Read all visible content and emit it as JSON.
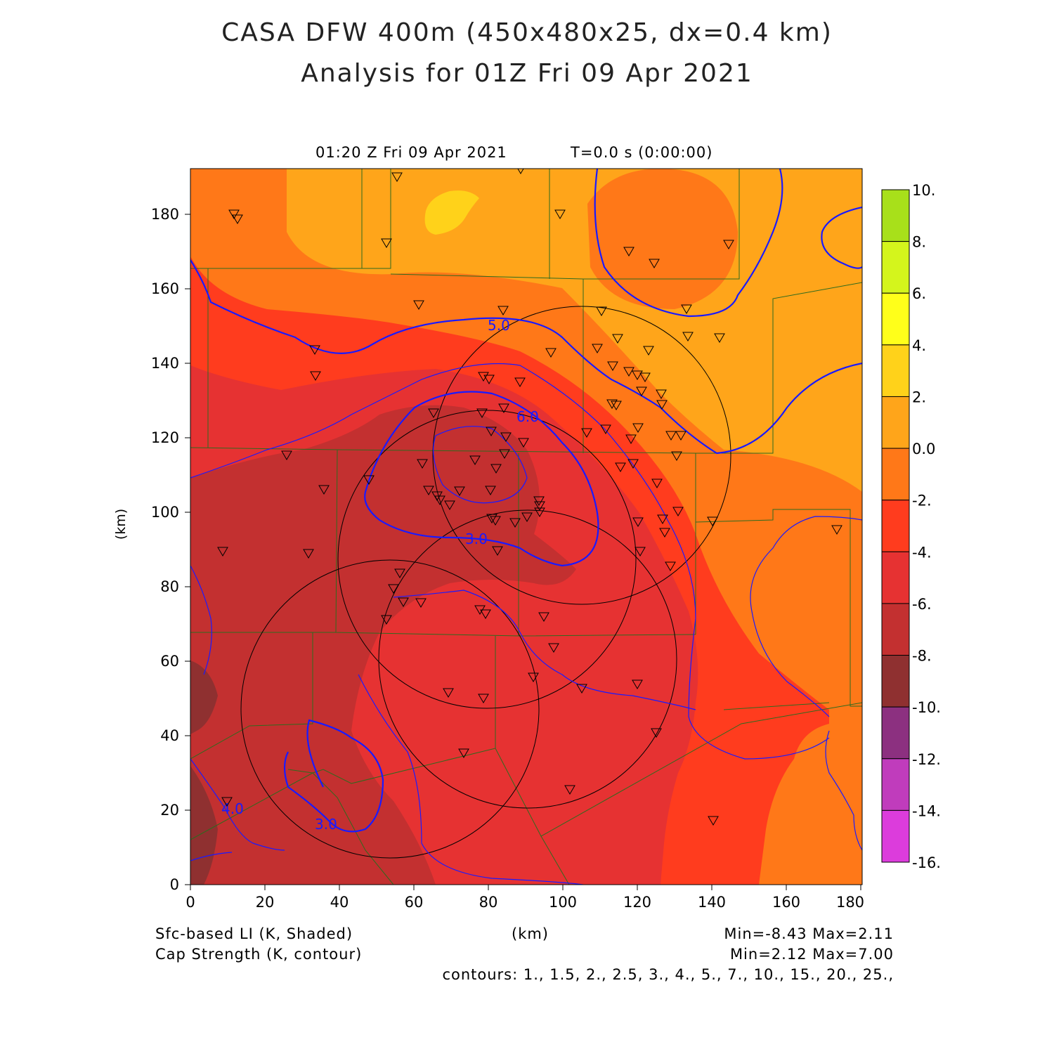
{
  "title": {
    "line1": "CASA DFW 400m (450x480x25, dx=0.4 km)",
    "line2": "Analysis for 01Z Fri 09 Apr 2021"
  },
  "valid_time": "01:20 Z Fri 09 Apr 2021",
  "model_time": "T=0.0 s (0:00:00)",
  "axes": {
    "x_ticks": [
      "0",
      "20",
      "40",
      "60",
      "80",
      "100",
      "120",
      "140",
      "160",
      "180"
    ],
    "y_ticks": [
      "0",
      "20",
      "40",
      "60",
      "80",
      "100",
      "120",
      "140",
      "160",
      "180"
    ],
    "xlabel": "(km)",
    "ylabel": "(km)",
    "xlim": [
      0,
      180
    ],
    "ylim": [
      0,
      192
    ]
  },
  "colorbar": {
    "labels": [
      "10.",
      "8.",
      "6.",
      "4.",
      "2.",
      "0.0",
      "-2.",
      "-4.",
      "-6.",
      "-8.",
      "-10.",
      "-12.",
      "-14.",
      "-16."
    ],
    "colors": [
      "#a8e01a",
      "#d4f51c",
      "#ffff1a",
      "#ffd21a",
      "#ffa51a",
      "#ff7818",
      "#ff3c1e",
      "#e63232",
      "#c33030",
      "#8f3030",
      "#8c3080",
      "#c03cbc",
      "#dc3cdc"
    ]
  },
  "fields": {
    "shaded": "Sfc-based LI (K, Shaded)",
    "shaded_stats": "Min=-8.43 Max=2.11",
    "contour": "Cap Strength (K, contour)",
    "contour_stats": "Min=2.12 Max=7.00",
    "contour_levels": "contours: 1., 1.5, 2., 2.5, 3., 4., 5., 7., 10., 15., 20., 25.,"
  },
  "contour_labels": [
    "5.0",
    "3.0",
    "6.0",
    "4.0",
    "3.0"
  ],
  "radar_rings_center_km": [
    [
      52,
      49
    ],
    [
      105,
      115
    ],
    [
      80,
      89
    ],
    [
      91,
      62
    ]
  ],
  "station_count": 96,
  "chart_data": {
    "type": "heatmap",
    "title": "CASA DFW 400m (450x480x25, dx=0.4 km)",
    "subtitle": "Analysis for 01Z Fri 09 Apr 2021",
    "xlabel": "(km)",
    "ylabel": "(km)",
    "xlim": [
      0,
      180
    ],
    "ylim": [
      0,
      192
    ],
    "colorbar_range": [
      -16,
      10
    ],
    "shaded_min": -8.43,
    "shaded_max": 2.11,
    "contour_min": 2.12,
    "contour_max": 7.0
  }
}
